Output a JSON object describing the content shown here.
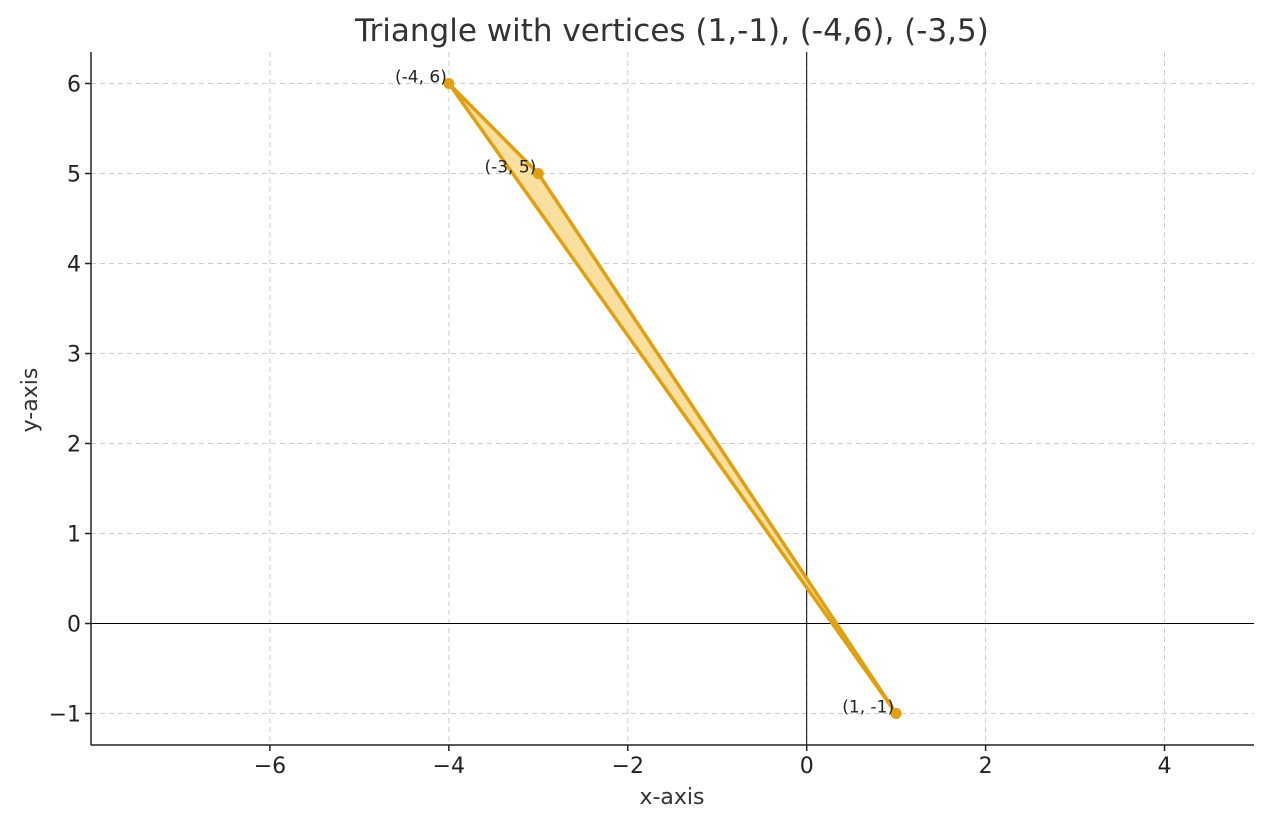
{
  "chart_data": {
    "type": "scatter",
    "title": "Triangle with vertices (1,-1), (-4,6), (-3,5)",
    "xlabel": "x-axis",
    "ylabel": "y-axis",
    "xlim": [
      -8,
      5
    ],
    "ylim": [
      -1.35,
      6.35
    ],
    "grid": true,
    "x_ticks": [
      -6,
      -4,
      -2,
      0,
      2,
      4
    ],
    "y_ticks": [
      -1,
      0,
      1,
      2,
      3,
      4,
      5,
      6
    ],
    "x_tick_labels": [
      "−6",
      "−4",
      "−2",
      "0",
      "2",
      "4"
    ],
    "y_tick_labels": [
      "−1",
      "0",
      "1",
      "2",
      "3",
      "4",
      "5",
      "6"
    ],
    "vertices": [
      {
        "x": 1,
        "y": -1,
        "label": "(1, -1)"
      },
      {
        "x": -4,
        "y": 6,
        "label": "(-4, 6)"
      },
      {
        "x": -3,
        "y": 5,
        "label": "(-3, 5)"
      }
    ],
    "colors": {
      "edge": "#e0a010",
      "fill": "#f9dfa0",
      "point": "#e0a010"
    }
  }
}
